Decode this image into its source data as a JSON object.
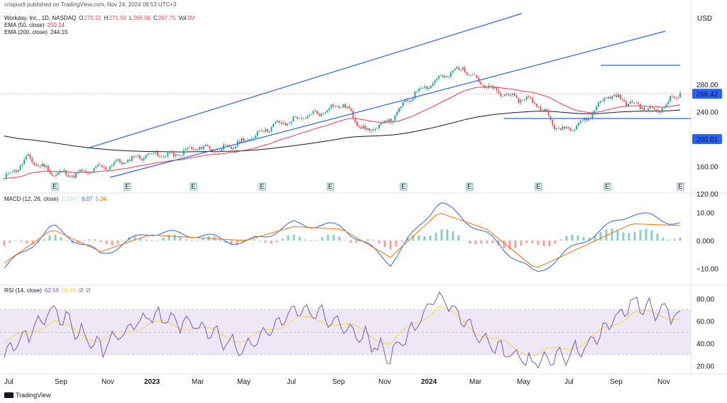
{
  "header": {
    "published": "crispus9 published on TradingView.com, Nov 24, 2024 08:53 UTC+3",
    "symbol": "Workday, Inc., 1D, NASDAQ",
    "ohlc": {
      "o_label": "O",
      "o": "270.32",
      "h_label": "H",
      "h": "271.50",
      "l_label": "L",
      "l": "266.06",
      "c_label": "C",
      "c": "267.75",
      "vol_label": "Vol",
      "vol": "2M"
    },
    "ema50": {
      "label": "EMA (50, close)",
      "value": "250.14"
    },
    "ema200": {
      "label": "EMA (200, close)",
      "value": "244.15"
    }
  },
  "currency": "USD",
  "price_axis": {
    "ticks": [
      "280.00",
      "240.00",
      "200.00",
      "160.00",
      "120.00"
    ],
    "badges": [
      "266.42",
      "200.01"
    ]
  },
  "macd_legend": {
    "label": "MACD (12, 26, close)",
    "v1": "0.7267",
    "v2": "6.07",
    "v3": "5.34"
  },
  "macd_axis": [
    "10.00",
    "0.000",
    "−10.00"
  ],
  "rsi_legend": {
    "label": "RSI (14, close)",
    "v1": "62.59",
    "v2": "63.16",
    "v3": "Ø",
    "v4": "Ø"
  },
  "rsi_axis": [
    "80.00",
    "60.00",
    "40.00",
    "20.00"
  ],
  "time_axis": [
    "Jul",
    "Sep",
    "Nov",
    "2023",
    "Mar",
    "May",
    "Jul",
    "Sep",
    "Nov",
    "2024",
    "Mar",
    "May",
    "Jul",
    "Sep",
    "Nov"
  ],
  "earnings_marker": "E",
  "logo": "TradingView",
  "colors": {
    "up": "#26a69a",
    "down": "#ef5350",
    "ema50": "#f23645",
    "ema200": "#131722",
    "trend": "#2962ff",
    "macd": "#2962ff",
    "signal": "#ff6d00",
    "rsi": "#7e57c2",
    "rsi_ma": "#f7d34a",
    "rsi_band": "#ede7f6"
  },
  "chart_data": [
    {
      "type": "candlestick",
      "title": "Workday, Inc., 1D, NASDAQ",
      "ylabel": "USD",
      "ylim": [
        115,
        320
      ],
      "x": [
        "2022-07",
        "2022-08",
        "2022-09",
        "2022-10",
        "2022-11",
        "2022-12",
        "2023-01",
        "2023-02",
        "2023-03",
        "2023-04",
        "2023-05",
        "2023-06",
        "2023-07",
        "2023-08",
        "2023-09",
        "2023-10",
        "2023-11",
        "2023-12",
        "2024-01",
        "2024-02",
        "2024-03",
        "2024-04",
        "2024-05",
        "2024-06",
        "2024-07",
        "2024-08",
        "2024-09",
        "2024-10",
        "2024-11"
      ],
      "close": [
        142,
        172,
        150,
        148,
        158,
        168,
        178,
        176,
        188,
        184,
        198,
        218,
        228,
        238,
        252,
        210,
        228,
        268,
        288,
        305,
        275,
        262,
        255,
        212,
        225,
        265,
        252,
        240,
        267.75
      ],
      "ema50_last": 250.14,
      "ema200_last": 244.15,
      "levels": [
        266.42,
        200.01
      ],
      "series": [
        {
          "name": "EMA (50, close)"
        },
        {
          "name": "EMA (200, close)"
        }
      ]
    },
    {
      "type": "line",
      "title": "MACD (12, 26, close)",
      "ylim": [
        -14,
        14
      ],
      "x": [
        "2022-07",
        "2022-09",
        "2022-11",
        "2023-01",
        "2023-03",
        "2023-05",
        "2023-07",
        "2023-09",
        "2023-11",
        "2024-01",
        "2024-03",
        "2024-05",
        "2024-07",
        "2024-09",
        "2024-11"
      ],
      "series": [
        {
          "name": "MACD",
          "values": [
            -10,
            5,
            -5,
            3,
            2,
            -1,
            6,
            5,
            -8,
            14,
            2,
            -12,
            0,
            10,
            6.07
          ]
        },
        {
          "name": "Signal",
          "values": [
            -8,
            4,
            -4,
            2,
            1,
            0,
            5,
            4,
            -6,
            10,
            4,
            -10,
            -2,
            6,
            5.34
          ]
        }
      ]
    },
    {
      "type": "line",
      "title": "RSI (14, close)",
      "ylim": [
        15,
        88
      ],
      "bands": [
        30,
        50,
        70
      ],
      "x": [
        "2022-07",
        "2022-09",
        "2022-11",
        "2023-01",
        "2023-03",
        "2023-05",
        "2023-07",
        "2023-09",
        "2023-11",
        "2024-01",
        "2024-03",
        "2024-05",
        "2024-07",
        "2024-09",
        "2024-11"
      ],
      "series": [
        {
          "name": "RSI",
          "values": [
            30,
            70,
            35,
            65,
            55,
            35,
            70,
            60,
            28,
            84,
            38,
            22,
            35,
            77,
            62.59
          ]
        },
        {
          "name": "RSI MA",
          "values": [
            40,
            60,
            42,
            58,
            54,
            42,
            62,
            58,
            40,
            74,
            45,
            30,
            40,
            68,
            63.16
          ]
        }
      ]
    }
  ]
}
